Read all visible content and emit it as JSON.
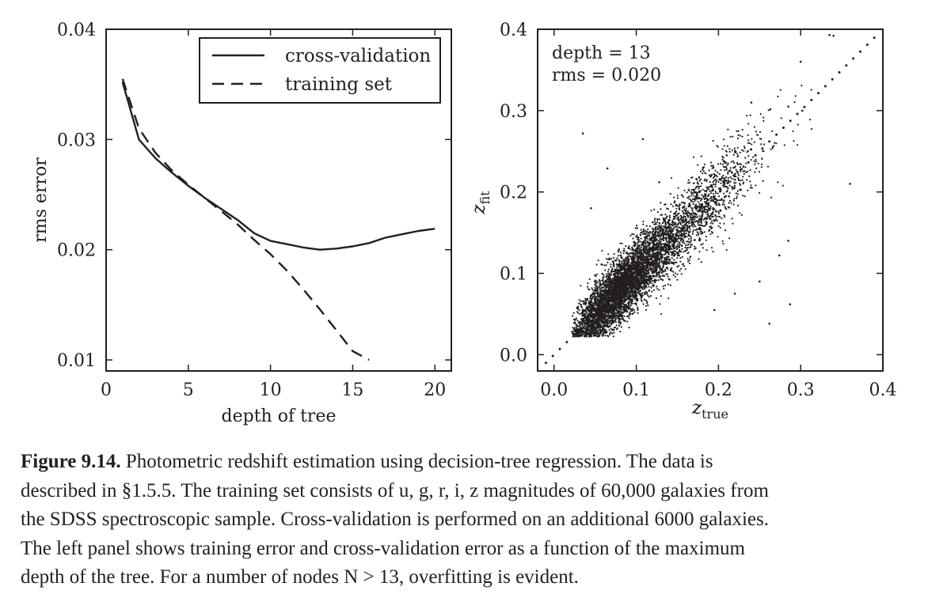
{
  "chart_data": [
    {
      "type": "line",
      "xlabel": "depth of tree",
      "ylabel": "rms error",
      "xlim": [
        0,
        21
      ],
      "ylim": [
        0.009,
        0.04
      ],
      "xticks": [
        "0",
        "5",
        "10",
        "15",
        "20"
      ],
      "yticks": [
        "0.01",
        "0.02",
        "0.03",
        "0.04"
      ],
      "legend_position": "top-right",
      "grid": false,
      "series": [
        {
          "name": "cross-validation",
          "style": "solid",
          "x": [
            1,
            2,
            3,
            4,
            5,
            6,
            7,
            8,
            9,
            10,
            11,
            12,
            13,
            14,
            15,
            16,
            17,
            18,
            19,
            20
          ],
          "y": [
            0.0352,
            0.03,
            0.0283,
            0.027,
            0.0258,
            0.0247,
            0.0237,
            0.0227,
            0.0215,
            0.0208,
            0.0205,
            0.0202,
            0.02,
            0.0201,
            0.0203,
            0.0206,
            0.0211,
            0.0214,
            0.0217,
            0.0219
          ]
        },
        {
          "name": "training set",
          "style": "dashed",
          "x": [
            1,
            2,
            3,
            4,
            5,
            6,
            7,
            8,
            9,
            10,
            11,
            12,
            13,
            14,
            15,
            16
          ],
          "y": [
            0.0355,
            0.031,
            0.0288,
            0.0272,
            0.0259,
            0.0247,
            0.0235,
            0.0223,
            0.0209,
            0.0196,
            0.0181,
            0.0164,
            0.0146,
            0.0127,
            0.0108,
            0.01
          ]
        }
      ]
    },
    {
      "type": "scatter",
      "xlabel_main": "z",
      "xlabel_sub": "true",
      "ylabel_main": "z",
      "ylabel_sub": "fit",
      "xlim": [
        -0.02,
        0.4
      ],
      "ylim": [
        -0.02,
        0.4
      ],
      "xticks": [
        "0.0",
        "0.1",
        "0.2",
        "0.3",
        "0.4"
      ],
      "yticks": [
        "0.0",
        "0.1",
        "0.2",
        "0.3",
        "0.4"
      ],
      "annotation": [
        "depth = 13",
        "rms = 0.020"
      ],
      "reference_line": {
        "style": "dotted",
        "slope": 1,
        "intercept": 0
      },
      "n_points_approx": 6000,
      "point_distribution": {
        "x_range": [
          0.02,
          0.36
        ],
        "peak_x": 0.08,
        "y_scatter_rms": 0.02
      },
      "outliers": [
        {
          "x": 0.035,
          "y": 0.272
        },
        {
          "x": 0.065,
          "y": 0.229
        },
        {
          "x": 0.108,
          "y": 0.265
        },
        {
          "x": 0.128,
          "y": 0.212
        },
        {
          "x": 0.22,
          "y": 0.075
        },
        {
          "x": 0.262,
          "y": 0.038
        },
        {
          "x": 0.287,
          "y": 0.062
        },
        {
          "x": 0.274,
          "y": 0.122
        },
        {
          "x": 0.36,
          "y": 0.21
        },
        {
          "x": 0.3,
          "y": 0.36
        },
        {
          "x": 0.285,
          "y": 0.305
        },
        {
          "x": 0.335,
          "y": 0.393
        },
        {
          "x": 0.34,
          "y": 0.392
        },
        {
          "x": 0.302,
          "y": 0.3
        },
        {
          "x": 0.24,
          "y": 0.31
        },
        {
          "x": 0.285,
          "y": 0.14
        },
        {
          "x": 0.25,
          "y": 0.09
        },
        {
          "x": 0.21,
          "y": 0.245
        },
        {
          "x": 0.045,
          "y": 0.18
        },
        {
          "x": 0.195,
          "y": 0.055
        }
      ]
    }
  ],
  "caption": {
    "lead": "Figure 9.14.",
    "lines": [
      " Photometric redshift estimation using decision-tree regression. The data is",
      "described in §1.5.5. The training set consists of u, g, r, i, z magnitudes of 60,000 galaxies from",
      "the SDSS spectroscopic sample. Cross-validation is performed on an additional 6000 galaxies.",
      "The left panel shows training error and cross-validation error as a function of the maximum",
      "depth of the tree. For a number of nodes N > 13, overfitting is evident."
    ]
  }
}
